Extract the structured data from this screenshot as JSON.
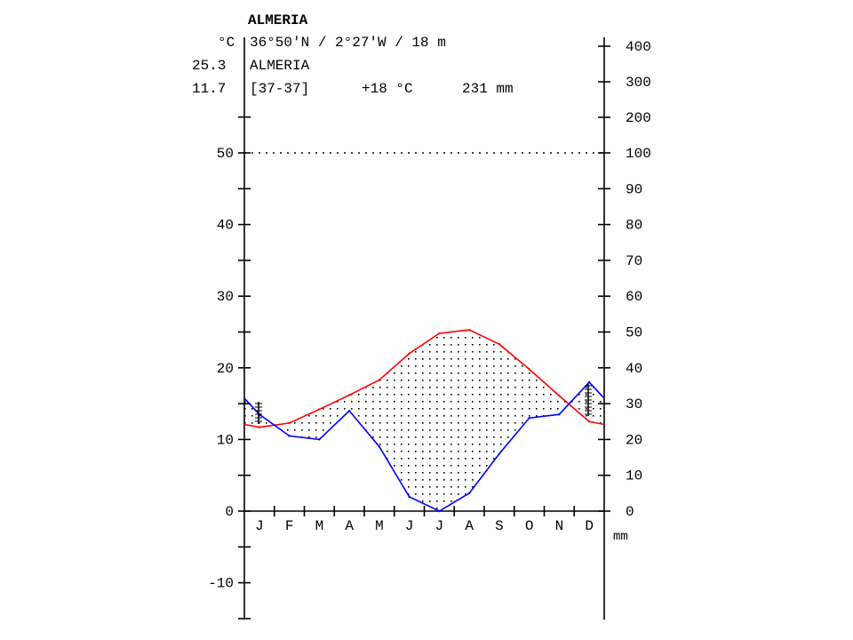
{
  "header": {
    "title": "ALMERIA",
    "unit_celsius": "°C",
    "coords": "36°50'N / 2°27'W / 18 m",
    "station": "ALMERIA",
    "value_max": "25.3",
    "value_min": "11.7",
    "period": "[37-37]",
    "mean_temp": "+18 °C",
    "annual_precip": "231 mm"
  },
  "mm_label": "mm",
  "colors": {
    "temperature": "#ff0000",
    "precipitation": "#0000ff",
    "axis": "#000000"
  },
  "chart_data": {
    "type": "line",
    "categories": [
      "J",
      "F",
      "M",
      "A",
      "M",
      "J",
      "J",
      "A",
      "S",
      "O",
      "N",
      "D"
    ],
    "series": [
      {
        "values": [
          11.7,
          12.3,
          14.2,
          16.2,
          18.3,
          22.0,
          24.8,
          25.3,
          23.3,
          19.8,
          16.1,
          12.5
        ]
      },
      {
        "values": [
          27,
          21,
          20,
          28,
          18,
          4,
          0,
          5,
          16,
          26,
          27,
          36
        ]
      }
    ],
    "left_axis": {
      "ticks": [
        50,
        40,
        30,
        20,
        10,
        0,
        -10
      ],
      "ylim": [
        -15,
        55
      ]
    },
    "right_axis": {
      "ticks": [
        400,
        300,
        200,
        100,
        90,
        80,
        70,
        60,
        50,
        40,
        30,
        20,
        10,
        0
      ],
      "scale": "mm = 2 × °C up to 100 mm, compressed above"
    },
    "dotted_line_at": 50,
    "frost_marks": [
      "January",
      "December"
    ]
  }
}
